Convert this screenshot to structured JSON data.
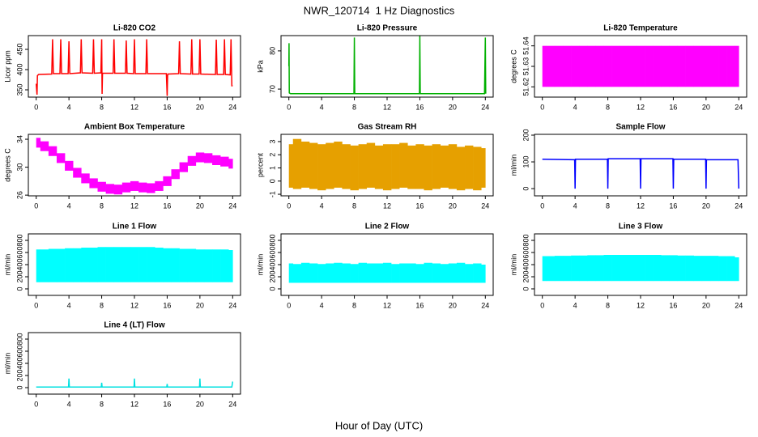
{
  "title": "NWR_120714  1 Hz Diagnostics",
  "xlabel": "Hour of Day (UTC)",
  "chart_data": [
    {
      "type": "line",
      "title": "Li-820 CO2",
      "ylabel": "Licor ppm",
      "color": "#ff0000",
      "x": [
        0,
        0.1,
        0.15,
        0.3,
        1.9,
        2,
        2.1,
        2.9,
        3,
        3.1,
        3.9,
        4,
        4.1,
        5.4,
        5.5,
        5.6,
        6.9,
        7,
        7.1,
        7.9,
        8,
        8.05,
        8.1,
        9.4,
        9.5,
        9.6,
        10.9,
        11,
        11.1,
        11.9,
        12,
        12.1,
        13.4,
        13.5,
        13.6,
        15.9,
        16,
        16.05,
        16.1,
        17.4,
        17.5,
        17.6,
        18.9,
        19,
        19.1,
        19.9,
        20,
        20.1,
        21.9,
        22,
        22.1,
        22.9,
        23,
        23.1,
        23.7,
        23.8,
        23.9,
        24
      ],
      "values": [
        365,
        338,
        385,
        388,
        389,
        475,
        390,
        390,
        475,
        390,
        390,
        470,
        390,
        392,
        475,
        392,
        391,
        475,
        391,
        392,
        475,
        340,
        391,
        391,
        475,
        391,
        391,
        472,
        391,
        390,
        475,
        390,
        390,
        475,
        390,
        390,
        335,
        385,
        389,
        390,
        470,
        390,
        389,
        475,
        389,
        389,
        475,
        389,
        388,
        474,
        388,
        388,
        475,
        388,
        387,
        475,
        360,
        360
      ],
      "xlim": [
        -0.96,
        24.96
      ],
      "xticks": [
        0,
        4,
        8,
        12,
        16,
        20,
        24
      ],
      "ylim": [
        332,
        484
      ],
      "yticks": [
        350,
        400,
        450
      ]
    },
    {
      "type": "line",
      "title": "Li-820 Pressure",
      "ylabel": "kPa",
      "color": "#00b000",
      "x": [
        0,
        0.02,
        0.05,
        0.2,
        7.95,
        8,
        8.05,
        15.95,
        16,
        16.05,
        23.9,
        24,
        24.05
      ],
      "values": [
        76,
        82,
        69,
        68.8,
        68.8,
        83.5,
        68.8,
        68.8,
        84,
        68.8,
        68.8,
        83.5,
        68.8
      ],
      "xlim": [
        -0.96,
        24.96
      ],
      "xticks": [
        0,
        4,
        8,
        12,
        16,
        20,
        24
      ],
      "ylim": [
        67.9,
        84
      ],
      "yticks": [
        70,
        80
      ]
    },
    {
      "type": "band",
      "title": "Li-820 Temperature",
      "ylabel": "degrees C",
      "color": "#ff00ff",
      "x": [
        0,
        1,
        2,
        3,
        4,
        5,
        6,
        7,
        8,
        9,
        10,
        11,
        12,
        13,
        14,
        15,
        16,
        17,
        18,
        19,
        20,
        21,
        22,
        23,
        24
      ],
      "low": [
        51.62,
        51.62,
        51.62,
        51.62,
        51.62,
        51.62,
        51.62,
        51.62,
        51.62,
        51.62,
        51.62,
        51.62,
        51.62,
        51.62,
        51.62,
        51.62,
        51.62,
        51.62,
        51.62,
        51.62,
        51.62,
        51.62,
        51.62,
        51.62,
        51.62
      ],
      "high": [
        51.64,
        51.64,
        51.64,
        51.64,
        51.64,
        51.64,
        51.64,
        51.64,
        51.64,
        51.64,
        51.64,
        51.64,
        51.64,
        51.64,
        51.64,
        51.64,
        51.64,
        51.64,
        51.64,
        51.64,
        51.64,
        51.64,
        51.64,
        51.64,
        51.64
      ],
      "xlim": [
        -0.96,
        24.96
      ],
      "xticks": [
        0,
        4,
        8,
        12,
        16,
        20,
        24
      ],
      "ylim": [
        51.615,
        51.645
      ],
      "yticks": [
        51.62,
        51.63,
        51.64
      ]
    },
    {
      "type": "band",
      "title": "Ambient Box Temperature",
      "ylabel": "degrees C",
      "color": "#ff00ff",
      "x": [
        0,
        1,
        2,
        3,
        4,
        5,
        6,
        7,
        8,
        9,
        10,
        11,
        12,
        13,
        14,
        15,
        16,
        17,
        18,
        19,
        20,
        21,
        22,
        23,
        24
      ],
      "low": [
        32.8,
        32.3,
        31.6,
        30.6,
        29.5,
        28.5,
        27.7,
        27.0,
        26.5,
        26.2,
        26.1,
        26.4,
        26.6,
        26.4,
        26.3,
        26.6,
        27.3,
        28.3,
        29.3,
        30.2,
        30.7,
        30.6,
        30.3,
        30.1,
        29.8
      ],
      "high": [
        34.2,
        33.7,
        33.0,
        32.0,
        30.9,
        29.9,
        29.1,
        28.4,
        27.9,
        27.6,
        27.5,
        27.8,
        28.0,
        27.8,
        27.7,
        28.0,
        28.7,
        29.7,
        30.7,
        31.6,
        32.1,
        32.0,
        31.7,
        31.5,
        31.2
      ],
      "xlim": [
        -0.96,
        24.96
      ],
      "xticks": [
        0,
        4,
        8,
        12,
        16,
        20,
        24
      ],
      "ylim": [
        25.9,
        34.7
      ],
      "yticks": [
        26,
        30,
        34
      ]
    },
    {
      "type": "band",
      "title": "Gas Stream RH",
      "ylabel": "percent",
      "color": "#e6a000",
      "x": [
        0,
        1,
        2,
        3,
        4,
        5,
        6,
        7,
        8,
        9,
        10,
        11,
        12,
        13,
        14,
        15,
        16,
        17,
        18,
        19,
        20,
        21,
        22,
        23,
        24
      ],
      "low": [
        -0.5,
        -0.6,
        -0.5,
        -0.6,
        -0.7,
        -0.6,
        -0.5,
        -0.6,
        -0.7,
        -0.6,
        -0.5,
        -0.6,
        -0.7,
        -0.6,
        -0.5,
        -0.6,
        -0.6,
        -0.7,
        -0.6,
        -0.5,
        -0.6,
        -0.7,
        -0.6,
        -0.7,
        -0.5
      ],
      "high": [
        2.8,
        3.2,
        3.0,
        2.9,
        2.8,
        2.9,
        3.0,
        2.8,
        2.7,
        2.8,
        2.9,
        2.7,
        2.8,
        2.8,
        2.9,
        2.7,
        2.8,
        2.7,
        2.8,
        2.7,
        2.8,
        2.6,
        2.7,
        2.6,
        2.5
      ],
      "xlim": [
        -0.96,
        24.96
      ],
      "xticks": [
        0,
        4,
        8,
        12,
        16,
        20,
        24
      ],
      "ylim": [
        -1.12,
        3.55
      ],
      "yticks": [
        -1,
        0,
        1,
        2,
        3
      ]
    },
    {
      "type": "line",
      "title": "Sample Flow",
      "ylabel": "ml/min",
      "color": "#0000ff",
      "x": [
        0,
        3.95,
        4,
        4.05,
        7.95,
        8,
        8.05,
        11.95,
        12,
        12.05,
        15.95,
        16,
        16.05,
        19.95,
        20,
        20.05,
        23.9,
        24
      ],
      "values": [
        110,
        108,
        0,
        110,
        110,
        0,
        112,
        112,
        0,
        112,
        112,
        0,
        110,
        110,
        0,
        108,
        108,
        0
      ],
      "xlim": [
        -0.96,
        24.96
      ],
      "xticks": [
        0,
        4,
        8,
        12,
        16,
        20,
        24
      ],
      "ylim": [
        -27,
        203
      ],
      "yticks": [
        0,
        100,
        200
      ]
    },
    {
      "type": "band",
      "title": "Line 1 Flow",
      "ylabel": "ml/min",
      "color": "#00ffff",
      "x": [
        0,
        1,
        2,
        3,
        4,
        5,
        6,
        7,
        8,
        9,
        10,
        11,
        12,
        13,
        14,
        15,
        16,
        17,
        18,
        19,
        20,
        21,
        22,
        23,
        24
      ],
      "low": [
        110,
        110,
        110,
        110,
        110,
        110,
        110,
        110,
        110,
        110,
        110,
        110,
        110,
        110,
        110,
        110,
        110,
        110,
        110,
        110,
        110,
        110,
        110,
        110,
        110
      ],
      "high": [
        650,
        650,
        660,
        660,
        670,
        670,
        680,
        680,
        690,
        690,
        690,
        690,
        690,
        690,
        690,
        680,
        670,
        670,
        660,
        660,
        650,
        650,
        650,
        650,
        640
      ],
      "xlim": [
        -0.96,
        24.96
      ],
      "xticks": [
        0,
        4,
        8,
        12,
        16,
        20,
        24
      ],
      "ylim": [
        -107,
        907
      ],
      "yticks": [
        0,
        200,
        400,
        600,
        800
      ]
    },
    {
      "type": "band",
      "title": "Line 2 Flow",
      "ylabel": "ml/min",
      "color": "#00ffff",
      "x": [
        0,
        1,
        2,
        3,
        4,
        5,
        6,
        7,
        8,
        9,
        10,
        11,
        12,
        13,
        14,
        15,
        16,
        17,
        18,
        19,
        20,
        21,
        22,
        23,
        24
      ],
      "low": [
        100,
        100,
        100,
        100,
        100,
        100,
        100,
        100,
        100,
        100,
        100,
        100,
        100,
        100,
        100,
        100,
        100,
        100,
        100,
        100,
        100,
        100,
        100,
        100,
        100
      ],
      "high": [
        420,
        410,
        430,
        420,
        410,
        420,
        430,
        420,
        410,
        430,
        420,
        420,
        430,
        410,
        420,
        420,
        410,
        430,
        420,
        410,
        420,
        430,
        410,
        420,
        400
      ],
      "xlim": [
        -0.96,
        24.96
      ],
      "xticks": [
        0,
        4,
        8,
        12,
        16,
        20,
        24
      ],
      "ylim": [
        -107,
        907
      ],
      "yticks": [
        0,
        200,
        400,
        600,
        800
      ]
    },
    {
      "type": "band",
      "title": "Line 3 Flow",
      "ylabel": "ml/min",
      "color": "#00ffff",
      "x": [
        0,
        1,
        2,
        3,
        4,
        5,
        6,
        7,
        8,
        9,
        10,
        11,
        12,
        13,
        14,
        15,
        16,
        17,
        18,
        19,
        20,
        21,
        22,
        23,
        24
      ],
      "low": [
        130,
        130,
        130,
        130,
        130,
        130,
        130,
        130,
        130,
        130,
        130,
        130,
        130,
        130,
        130,
        130,
        130,
        130,
        130,
        130,
        130,
        130,
        130,
        130,
        130
      ],
      "high": [
        540,
        540,
        545,
        545,
        550,
        550,
        555,
        555,
        560,
        560,
        560,
        560,
        560,
        560,
        560,
        555,
        555,
        550,
        550,
        545,
        545,
        545,
        540,
        540,
        520
      ],
      "xlim": [
        -0.96,
        24.96
      ],
      "xticks": [
        0,
        4,
        8,
        12,
        16,
        20,
        24
      ],
      "ylim": [
        -107,
        907
      ],
      "yticks": [
        0,
        200,
        400,
        600,
        800
      ]
    },
    {
      "type": "line",
      "title": "Line 4 (LT) Flow",
      "ylabel": "ml/min",
      "color": "#00e0e0",
      "x": [
        0,
        3.95,
        4,
        4.05,
        7.95,
        8,
        8.05,
        11.95,
        12,
        12.05,
        15.95,
        16,
        16.05,
        19.95,
        20,
        20.05,
        23.9,
        24
      ],
      "values": [
        10,
        10,
        150,
        10,
        10,
        80,
        10,
        10,
        150,
        10,
        10,
        60,
        10,
        10,
        150,
        10,
        10,
        100
      ],
      "xlim": [
        -0.96,
        24.96
      ],
      "xticks": [
        0,
        4,
        8,
        12,
        16,
        20,
        24
      ],
      "ylim": [
        -107,
        907
      ],
      "yticks": [
        0,
        200,
        400,
        600,
        800
      ]
    }
  ]
}
